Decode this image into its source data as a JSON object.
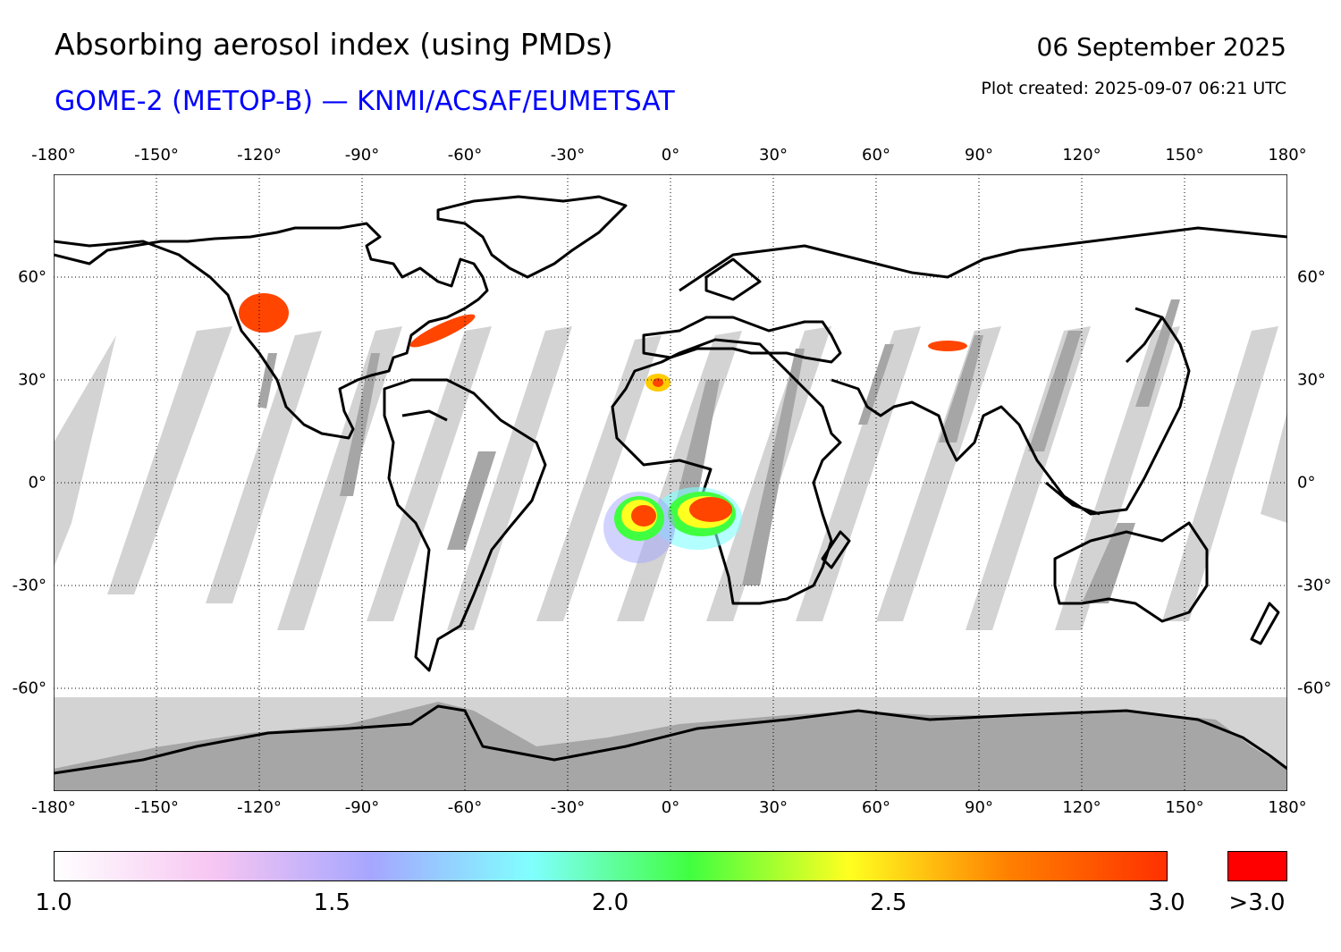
{
  "header": {
    "title": "Absorbing aerosol index (using PMDs)",
    "subtitle": "GOME-2 (METOP-B) — KNMI/ACSAF/EUMETSAT",
    "date": "06 September 2025",
    "created": "Plot created: 2025-09-07 06:21 UTC",
    "subtitle_color": "#0000ff"
  },
  "map": {
    "lon_labels": [
      "-180°",
      "-150°",
      "-120°",
      "-90°",
      "-60°",
      "-30°",
      "0°",
      "30°",
      "60°",
      "90°",
      "120°",
      "150°",
      "180°"
    ],
    "lat_labels": [
      "60°",
      "30°",
      "0°",
      "-30°",
      "-60°"
    ],
    "lon_range": [
      -180,
      180
    ],
    "lat_range": [
      -90,
      90
    ],
    "gridlines": "dotted",
    "no_data_color": "#d3d3d3",
    "night_gap_color": "#a6a6a6",
    "coastline_color": "#000000"
  },
  "colorbar": {
    "labels": [
      "1.0",
      "1.5",
      "2.0",
      "2.5",
      "3.0"
    ],
    "overflow_label": ">3.0",
    "overflow_color": "#ff0000",
    "range": [
      1.0,
      3.0
    ],
    "colors": [
      "#ffffff",
      "#f7c6f2",
      "#a6a6ff",
      "#80ffff",
      "#40ff40",
      "#ffff20",
      "#ff8000",
      "#ff3000"
    ]
  },
  "aerosol_plumes": [
    {
      "region": "Central Africa",
      "value": "> 3.0",
      "color": "#ff4500"
    },
    {
      "region": "South Atlantic off Angola",
      "value": "> 3.0",
      "color": "#ff4500"
    },
    {
      "region": "Western Canada",
      "value": "> 3.0",
      "color": "#ff4500"
    },
    {
      "region": "Eastern North America",
      "value": "> 3.0",
      "color": "#ff4500"
    },
    {
      "region": "Northern India / Nepal",
      "value": "> 3.0",
      "color": "#ff4500"
    },
    {
      "region": "West Africa",
      "value": "2.5 - 3.0",
      "color": "#ffcc00"
    }
  ]
}
